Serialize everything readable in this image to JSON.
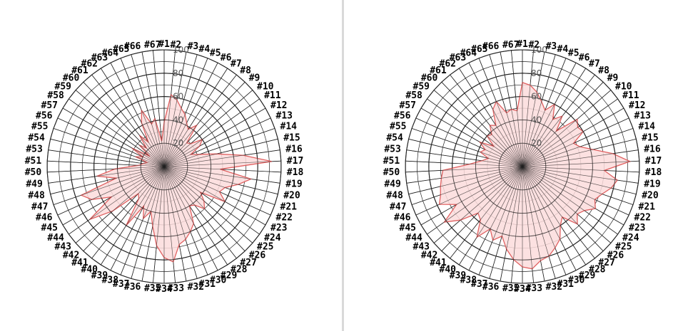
{
  "chart_data": [
    {
      "type": "radar",
      "categories": [
        "#1",
        "#2",
        "#3",
        "#4",
        "#5",
        "#6",
        "#7",
        "#8",
        "#9",
        "#10",
        "#11",
        "#12",
        "#13",
        "#14",
        "#15",
        "#16",
        "#17",
        "#18",
        "#19",
        "#20",
        "#21",
        "#22",
        "#23",
        "#24",
        "#25",
        "#26",
        "#27",
        "#28",
        "#29",
        "#30",
        "#31",
        "#32",
        "#33",
        "#34",
        "#35",
        "#36",
        "#37",
        "#38",
        "#39",
        "#40",
        "#41",
        "#42",
        "#43",
        "#44",
        "#45",
        "#46",
        "#47",
        "#48",
        "#49",
        "#50",
        "#51",
        "#53",
        "#54",
        "#55",
        "#56",
        "#57",
        "#58",
        "#59",
        "#60",
        "#61",
        "#62",
        "#63",
        "#64",
        "#65",
        "#66",
        "#67"
      ],
      "values": [
        38,
        62,
        58,
        52,
        48,
        42,
        38,
        45,
        28,
        30,
        40,
        35,
        25,
        32,
        46,
        68,
        92,
        48,
        75,
        65,
        55,
        52,
        60,
        38,
        45,
        50,
        42,
        40,
        55,
        60,
        65,
        68,
        82,
        78,
        68,
        52,
        40,
        48,
        38,
        60,
        35,
        32,
        58,
        78,
        52,
        68,
        75,
        42,
        58,
        42,
        22,
        18,
        15,
        26,
        20,
        32,
        15,
        28,
        22,
        34,
        25,
        42,
        52,
        38,
        42,
        22
      ],
      "rmax": 100,
      "ticks": [
        "20",
        "40",
        "60",
        "80",
        "100"
      ],
      "fill_color": "#fcdcdc",
      "line_color": "#e06060",
      "grid_color": "#222222"
    },
    {
      "type": "radar",
      "categories": [
        "#1",
        "#2",
        "#3",
        "#4",
        "#5",
        "#6",
        "#7",
        "#8",
        "#9",
        "#10",
        "#11",
        "#12",
        "#13",
        "#14",
        "#15",
        "#16",
        "#17",
        "#18",
        "#19",
        "#20",
        "#21",
        "#22",
        "#23",
        "#24",
        "#25",
        "#26",
        "#27",
        "#28",
        "#29",
        "#30",
        "#31",
        "#32",
        "#33",
        "#34",
        "#35",
        "#36",
        "#37",
        "#38",
        "#39",
        "#40",
        "#41",
        "#42",
        "#43",
        "#44",
        "#45",
        "#46",
        "#47",
        "#48",
        "#49",
        "#50",
        "#51",
        "#53",
        "#54",
        "#55",
        "#56",
        "#57",
        "#58",
        "#59",
        "#60",
        "#61",
        "#62",
        "#63",
        "#64",
        "#65",
        "#66",
        "#67"
      ],
      "values": [
        72,
        70,
        65,
        58,
        52,
        60,
        48,
        55,
        42,
        62,
        58,
        60,
        48,
        52,
        62,
        78,
        92,
        70,
        82,
        78,
        72,
        68,
        72,
        65,
        62,
        68,
        55,
        60,
        70,
        75,
        80,
        82,
        88,
        86,
        80,
        72,
        62,
        68,
        60,
        72,
        58,
        55,
        70,
        82,
        65,
        78,
        74,
        72,
        70,
        68,
        45,
        35,
        30,
        38,
        35,
        42,
        30,
        40,
        38,
        45,
        42,
        55,
        60,
        48,
        50,
        48
      ],
      "rmax": 100,
      "ticks": [
        "20",
        "40",
        "60",
        "80",
        "100"
      ],
      "fill_color": "#fcdcdc",
      "line_color": "#e06060",
      "grid_color": "#222222"
    }
  ]
}
